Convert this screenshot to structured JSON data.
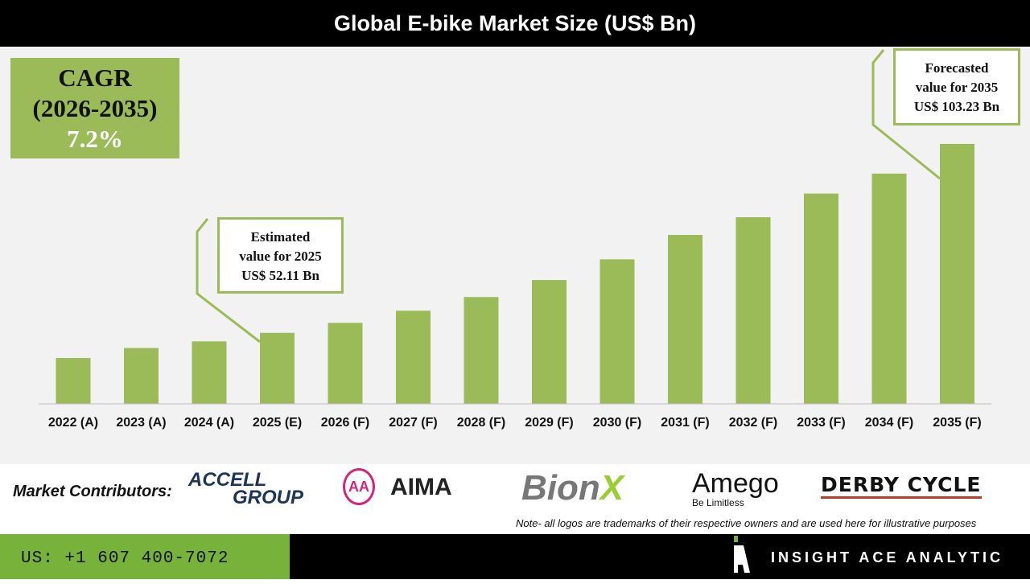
{
  "chart_data": {
    "type": "bar",
    "title": "Global E-bike Market Size (US$ Bn)",
    "categories": [
      "2022 (A)",
      "2023 (A)",
      "2024 (A)",
      "2025 (E)",
      "2026 (F)",
      "2027 (F)",
      "2028 (F)",
      "2029 (F)",
      "2030 (F)",
      "2031 (F)",
      "2032 (F)",
      "2033 (F)",
      "2034 (F)",
      "2035 (F)"
    ],
    "values": [
      45.3,
      48.0,
      49.8,
      52.11,
      54.8,
      58.1,
      61.8,
      66.4,
      72.0,
      78.6,
      83.4,
      89.8,
      95.2,
      103.23
    ],
    "ylim": [
      32.9,
      108
    ],
    "grid": false,
    "bar_color": "#9bbb59",
    "annotations": {
      "cagr": {
        "label": "CAGR",
        "period": "(2026-2035)",
        "value": "7.2%"
      },
      "estimated": {
        "line1": "Estimated",
        "line2": "value for 2025",
        "line3": "US$ 52.11 Bn"
      },
      "forecasted": {
        "line1": "Forecasted",
        "line2": "value for 2035",
        "line3": "US$ 103.23 Bn"
      }
    }
  },
  "footer": {
    "contributors_label": "Market Contributors:",
    "logos": [
      "ACCELL GROUP",
      "AIMA",
      "BionX",
      "Amego Be Limitless",
      "DERBY CYCLE"
    ],
    "note": "Note- all logos are trademarks of their respective owners and are used here for illustrative purposes",
    "phone": "US: +1 607 400-7072",
    "brand": "INSIGHT ACE ANALYTIC"
  },
  "colors": {
    "accent": "#9bbb59",
    "footer_green": "#77b23b"
  }
}
